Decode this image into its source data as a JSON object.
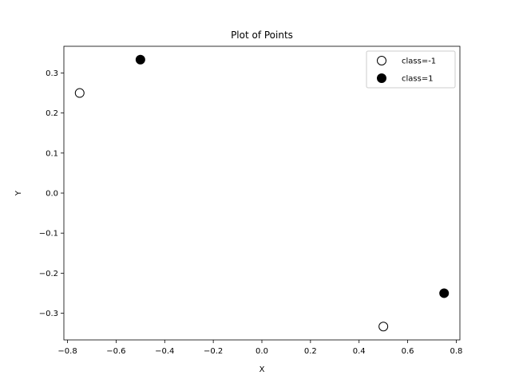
{
  "chart_data": {
    "type": "scatter",
    "title": "Plot of Points",
    "xlabel": "X",
    "ylabel": "Y",
    "xlim": [
      -0.815,
      0.815
    ],
    "ylim": [
      -0.3667,
      0.3667
    ],
    "xticks": [
      -0.8,
      -0.6,
      -0.4,
      -0.2,
      0.0,
      0.2,
      0.4,
      0.6,
      0.8
    ],
    "xtick_labels": [
      "−0.8",
      "−0.6",
      "−0.4",
      "−0.2",
      "0.0",
      "0.2",
      "0.4",
      "0.6",
      "0.8"
    ],
    "yticks": [
      -0.3,
      -0.2,
      -0.1,
      0.0,
      0.1,
      0.2,
      0.3
    ],
    "ytick_labels": [
      "−0.3",
      "−0.2",
      "−0.1",
      "0.0",
      "0.1",
      "0.2",
      "0.3"
    ],
    "grid": false,
    "legend_position": "top-right",
    "series": [
      {
        "name": "class=-1",
        "marker": "hollow-circle",
        "color": "#000000",
        "x": [
          -0.75,
          0.5
        ],
        "y": [
          0.25,
          -0.3333
        ]
      },
      {
        "name": "class=1",
        "marker": "filled-circle",
        "color": "#000000",
        "x": [
          -0.5,
          0.75
        ],
        "y": [
          0.3333,
          -0.25
        ]
      }
    ]
  }
}
